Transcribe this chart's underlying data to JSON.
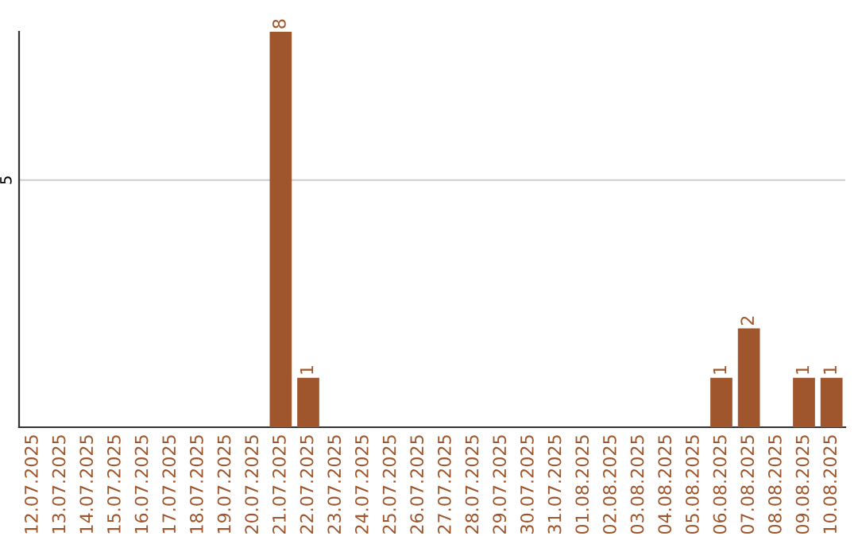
{
  "chart_data": {
    "type": "bar",
    "categories": [
      "12.07.2025",
      "13.07.2025",
      "14.07.2025",
      "15.07.2025",
      "16.07.2025",
      "17.07.2025",
      "18.07.2025",
      "19.07.2025",
      "20.07.2025",
      "21.07.2025",
      "22.07.2025",
      "23.07.2025",
      "24.07.2025",
      "25.07.2025",
      "26.07.2025",
      "27.07.2025",
      "28.07.2025",
      "29.07.2025",
      "30.07.2025",
      "31.07.2025",
      "01.08.2025",
      "02.08.2025",
      "03.08.2025",
      "04.08.2025",
      "05.08.2025",
      "06.08.2025",
      "07.08.2025",
      "08.08.2025",
      "09.08.2025",
      "10.08.2025"
    ],
    "values": [
      0,
      0,
      0,
      0,
      0,
      0,
      0,
      0,
      0,
      8,
      1,
      0,
      0,
      0,
      0,
      0,
      0,
      0,
      0,
      0,
      0,
      0,
      0,
      0,
      0,
      1,
      2,
      0,
      1,
      1
    ],
    "value_labels": [
      null,
      null,
      null,
      null,
      null,
      null,
      null,
      null,
      null,
      "8",
      "1",
      null,
      null,
      null,
      null,
      null,
      null,
      null,
      null,
      null,
      null,
      null,
      null,
      null,
      null,
      "1",
      "2",
      null,
      "1",
      "1"
    ],
    "color": "#a0562c",
    "ylim": [
      0,
      8
    ],
    "yticks": [
      5
    ],
    "grid": "y"
  }
}
